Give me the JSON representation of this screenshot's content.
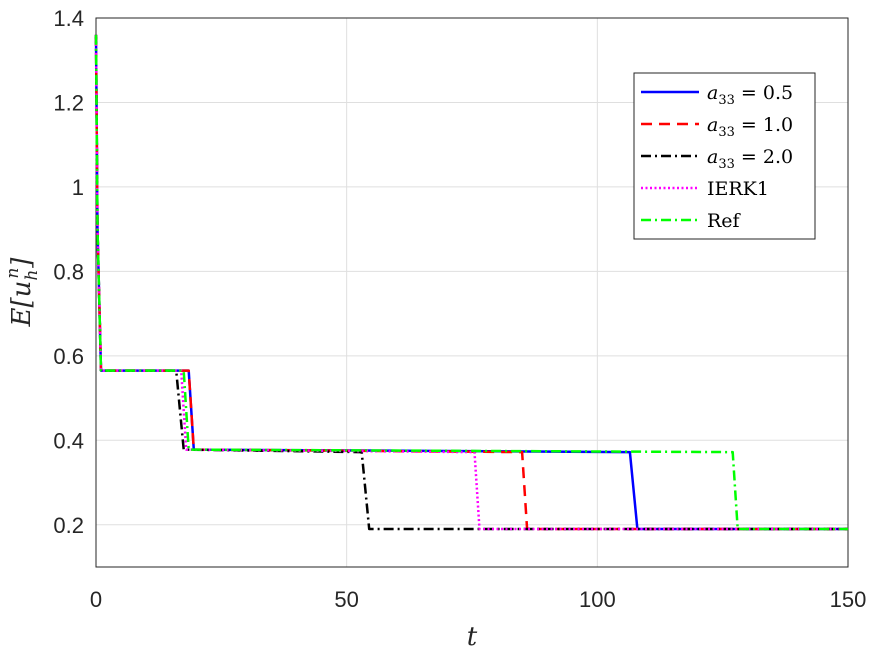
{
  "chart_data": {
    "type": "line",
    "title": "",
    "xlabel": "t",
    "ylabel": "E[u_h^n]",
    "xlim": [
      0,
      150
    ],
    "ylim": [
      0.1,
      1.4
    ],
    "x_ticks": [
      "0",
      "50",
      "100",
      "150"
    ],
    "y_ticks": [
      "0.2",
      "0.4",
      "0.6",
      "0.8",
      "1",
      "1.2",
      "1.4"
    ],
    "grid": true,
    "legend_position": "top-right",
    "series": [
      {
        "name": "a33 = 0.5",
        "color": "#0000ff",
        "dash": "solid",
        "x": [
          0,
          0.3,
          1,
          18.5,
          19.5,
          106.5,
          108,
          150
        ],
        "y": [
          1.36,
          0.9,
          0.565,
          0.565,
          0.378,
          0.372,
          0.19,
          0.19
        ]
      },
      {
        "name": "a33 = 1.0",
        "color": "#ff0000",
        "dash": "dashed",
        "x": [
          0,
          0.3,
          1,
          18.5,
          19.5,
          85,
          86,
          150
        ],
        "y": [
          1.36,
          0.9,
          0.565,
          0.565,
          0.378,
          0.372,
          0.19,
          0.19
        ]
      },
      {
        "name": "a33 = 2.0",
        "color": "#000000",
        "dash": "dashdot",
        "x": [
          0,
          0.3,
          1,
          16,
          17.5,
          53,
          54.5,
          150
        ],
        "y": [
          1.36,
          0.9,
          0.565,
          0.565,
          0.378,
          0.372,
          0.19,
          0.19
        ]
      },
      {
        "name": "IERK1",
        "color": "#ff00ff",
        "dash": "dotted",
        "x": [
          0,
          0.3,
          1,
          17,
          18,
          75.5,
          76.5,
          150
        ],
        "y": [
          1.36,
          0.9,
          0.565,
          0.565,
          0.378,
          0.372,
          0.19,
          0.19
        ]
      },
      {
        "name": "Ref",
        "color": "#00ff00",
        "dash": "dashdot",
        "x": [
          0,
          0.3,
          1,
          17.5,
          18.5,
          127,
          128,
          150
        ],
        "y": [
          1.36,
          0.9,
          0.565,
          0.565,
          0.378,
          0.372,
          0.19,
          0.19
        ]
      }
    ]
  }
}
